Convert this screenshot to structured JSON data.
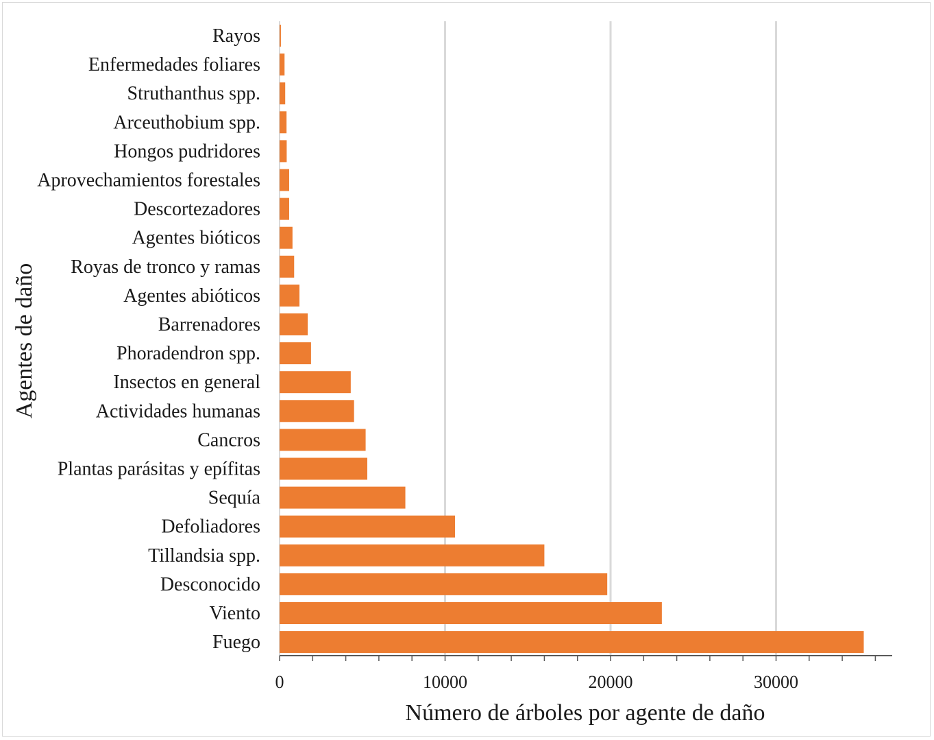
{
  "chart_data": {
    "type": "bar",
    "orientation": "horizontal",
    "title": "",
    "xlabel": "Número de árboles por agente de daño",
    "ylabel": "Agentes de daño",
    "xlim": [
      0,
      36000
    ],
    "x_ticks": [
      0,
      10000,
      20000,
      30000
    ],
    "x_tick_labels": [
      "0",
      "10000",
      "20000",
      "30000"
    ],
    "grid": "vertical major gridlines",
    "legend": "none",
    "bar_color": "#ED7D31",
    "grid_color": "#d9d9d9",
    "categories": [
      "Rayos",
      "Enfermedades foliares",
      "Struthanthus spp.",
      "Arceuthobium spp.",
      "Hongos pudridores",
      "Aprovechamientos forestales",
      "Descortezadores",
      "Agentes bióticos",
      "Royas de tronco y ramas",
      "Agentes abióticos",
      "Barrenadores",
      "Phoradendron spp.",
      "Insectos en general",
      "Actividades humanas",
      "Cancros ",
      "Plantas parásitas y epífitas",
      "Sequía",
      "Defoliadores",
      "Tillandsia spp.",
      "Desconocido",
      "Viento",
      "Fuego"
    ],
    "values": [
      80,
      300,
      340,
      420,
      430,
      580,
      580,
      780,
      880,
      1200,
      1700,
      1900,
      4300,
      4500,
      5200,
      5300,
      7600,
      10600,
      16000,
      19800,
      23100,
      35300
    ]
  }
}
